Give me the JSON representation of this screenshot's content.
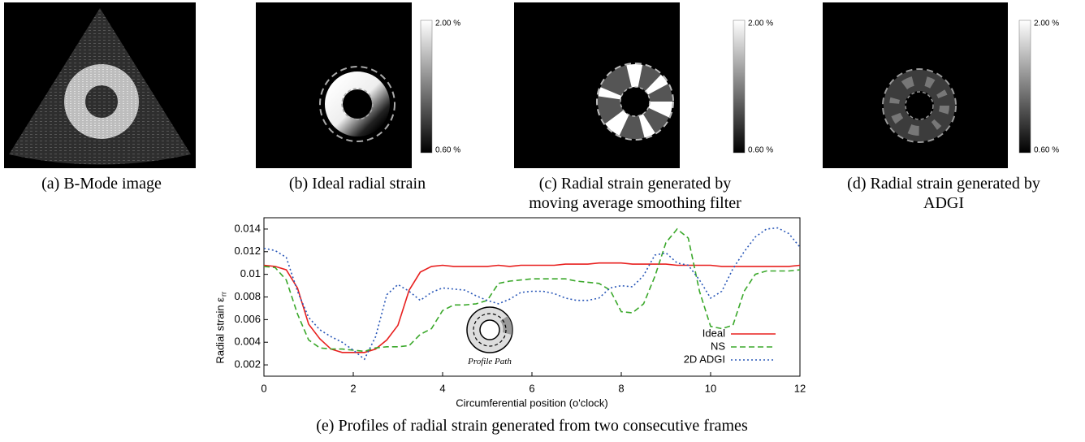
{
  "panels": [
    {
      "caption": [
        "(a) B-Mode image"
      ]
    },
    {
      "caption": [
        "(b) Ideal radial strain"
      ],
      "colorbar_max": "2.00 %",
      "colorbar_min": "0.60 %"
    },
    {
      "caption": [
        "(c) Radial strain generated by",
        "moving average smoothing filter"
      ],
      "colorbar_max": "2.00 %",
      "colorbar_min": "0.60 %"
    },
    {
      "caption": [
        "(d) Radial strain generated by",
        "ADGI"
      ],
      "colorbar_max": "2.00 %",
      "colorbar_min": "0.60 %"
    }
  ],
  "chart_data": {
    "type": "line",
    "caption": "(e) Profiles of radial strain generated from two consecutive frames",
    "xlabel": "Circumferential position (o'clock)",
    "ylabel": "Radial strain ε",
    "ylabel_subscript": "rr",
    "inset_label": "Profile Path",
    "xlim": [
      0,
      12
    ],
    "ylim": [
      0.001,
      0.015
    ],
    "xticks": [
      0,
      2,
      4,
      6,
      8,
      10,
      12
    ],
    "yticks": [
      0.002,
      0.004,
      0.006,
      0.008,
      0.01,
      0.012,
      0.014
    ],
    "legend": "lower-right",
    "x": [
      0,
      0.25,
      0.5,
      0.75,
      1,
      1.25,
      1.5,
      1.75,
      2,
      2.25,
      2.5,
      2.75,
      3,
      3.25,
      3.5,
      3.75,
      4,
      4.25,
      4.5,
      4.75,
      5,
      5.25,
      5.5,
      5.75,
      6,
      6.25,
      6.5,
      6.75,
      7,
      7.25,
      7.5,
      7.75,
      8,
      8.25,
      8.5,
      8.75,
      9,
      9.25,
      9.5,
      9.75,
      10,
      10.25,
      10.5,
      10.75,
      11,
      11.25,
      11.5,
      11.75,
      12
    ],
    "series": [
      {
        "name": "Ideal",
        "color": "#e8201f",
        "dash": "solid",
        "values": [
          0.0108,
          0.0107,
          0.0104,
          0.0088,
          0.0056,
          0.0043,
          0.0034,
          0.0031,
          0.0031,
          0.0031,
          0.0034,
          0.0042,
          0.0055,
          0.0086,
          0.0102,
          0.0107,
          0.0108,
          0.0107,
          0.0107,
          0.0107,
          0.0107,
          0.0108,
          0.0107,
          0.0108,
          0.0108,
          0.0108,
          0.0108,
          0.0109,
          0.0109,
          0.0109,
          0.011,
          0.011,
          0.011,
          0.0109,
          0.0109,
          0.0109,
          0.0109,
          0.0108,
          0.0108,
          0.0108,
          0.0108,
          0.0107,
          0.0107,
          0.0107,
          0.0107,
          0.0107,
          0.0107,
          0.0107,
          0.0108
        ]
      },
      {
        "name": "NS",
        "color": "#3aa82a",
        "dash": "dashed",
        "values": [
          0.0107,
          0.0106,
          0.0095,
          0.0065,
          0.0042,
          0.0035,
          0.0034,
          0.0034,
          0.0033,
          0.0032,
          0.0035,
          0.0036,
          0.0036,
          0.0037,
          0.0047,
          0.0052,
          0.0068,
          0.0073,
          0.0073,
          0.0074,
          0.0077,
          0.0092,
          0.0094,
          0.0095,
          0.0096,
          0.0096,
          0.0096,
          0.0096,
          0.0094,
          0.0093,
          0.0092,
          0.0086,
          0.0067,
          0.0066,
          0.0074,
          0.0098,
          0.0128,
          0.014,
          0.0132,
          0.0085,
          0.0054,
          0.0052,
          0.0055,
          0.0085,
          0.01,
          0.0103,
          0.0103,
          0.0103,
          0.0104
        ]
      },
      {
        "name": "2D ADGI",
        "color": "#2a58b8",
        "dash": "dotted",
        "values": [
          0.0123,
          0.0121,
          0.0115,
          0.0085,
          0.0062,
          0.0051,
          0.0045,
          0.004,
          0.0033,
          0.0025,
          0.0045,
          0.0082,
          0.0091,
          0.0085,
          0.0077,
          0.0084,
          0.0088,
          0.0087,
          0.0086,
          0.0081,
          0.0077,
          0.0074,
          0.0078,
          0.0084,
          0.0085,
          0.0085,
          0.0083,
          0.0079,
          0.0077,
          0.0077,
          0.0079,
          0.0088,
          0.009,
          0.0089,
          0.0099,
          0.0117,
          0.0119,
          0.011,
          0.0108,
          0.0095,
          0.0079,
          0.0085,
          0.0105,
          0.012,
          0.0133,
          0.014,
          0.0141,
          0.0136,
          0.0124
        ]
      }
    ]
  }
}
